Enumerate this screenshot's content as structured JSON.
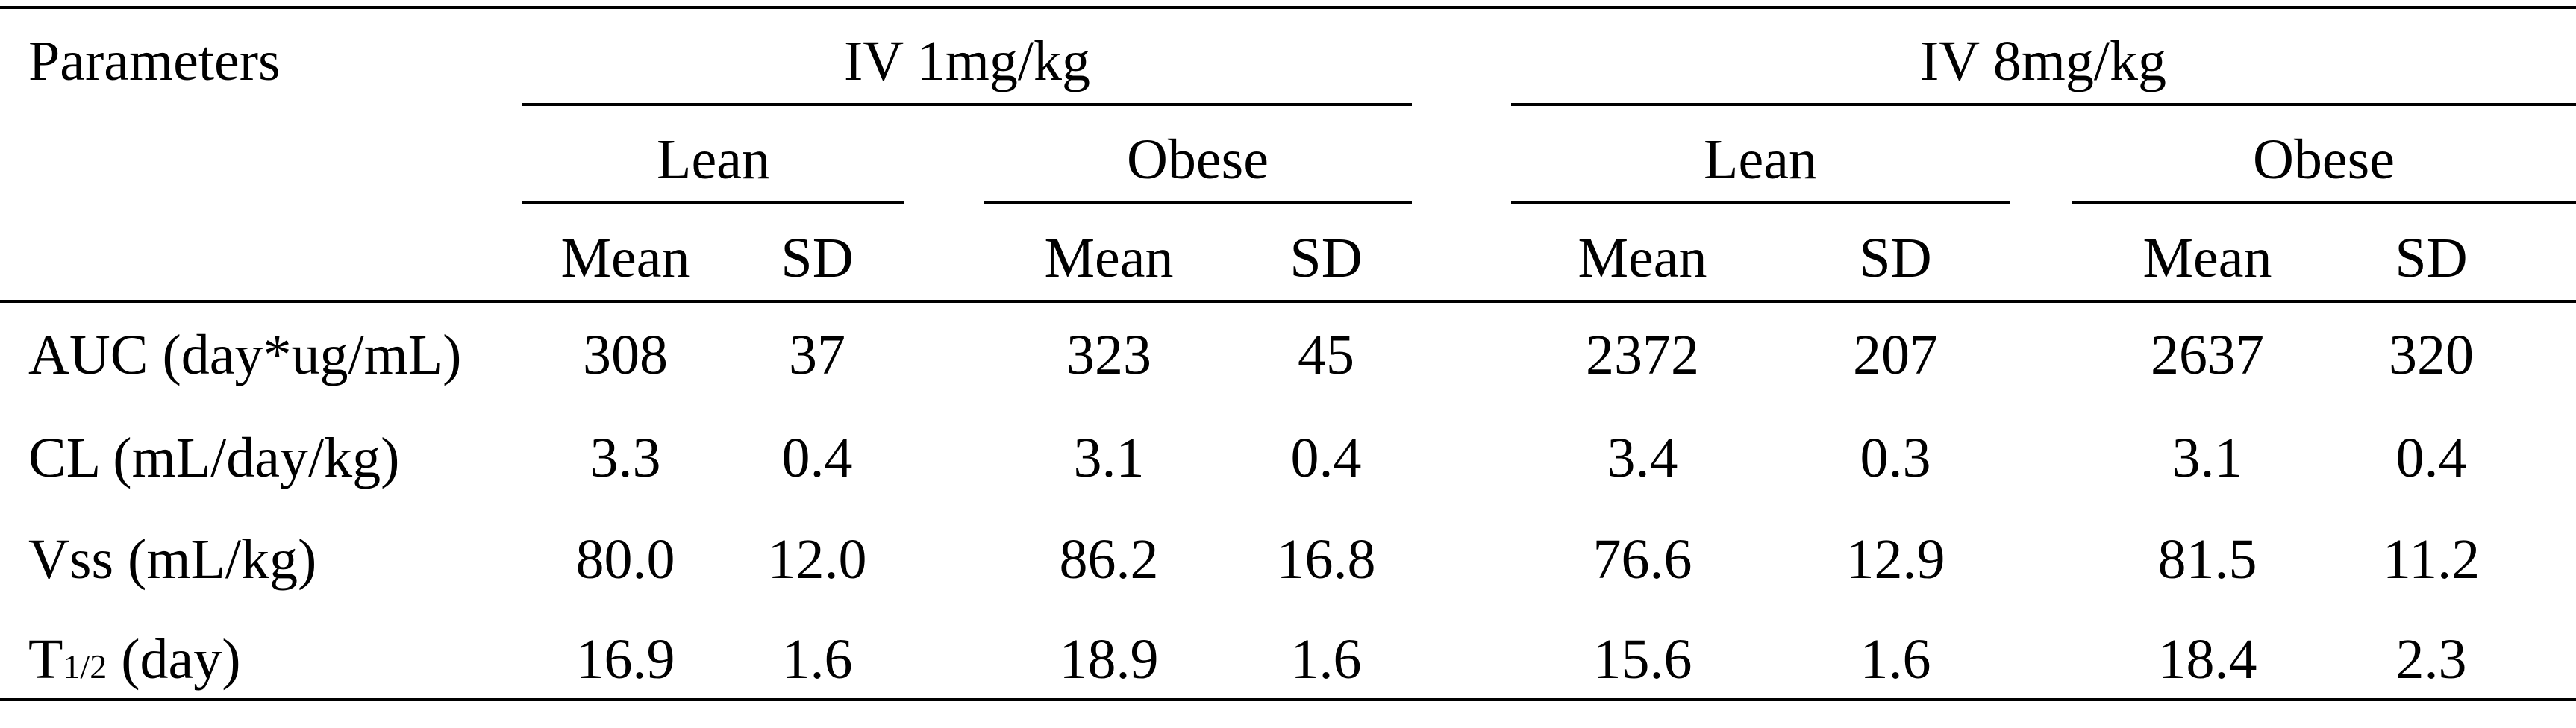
{
  "table": {
    "header": {
      "param_label": "Parameters",
      "groups": [
        "IV 1mg/kg",
        "IV 8mg/kg"
      ],
      "subgroups": [
        "Lean",
        "Obese",
        "Lean",
        "Obese"
      ],
      "stats": [
        "Mean",
        "SD",
        "Mean",
        "SD",
        "Mean",
        "SD",
        "Mean",
        "SD"
      ]
    },
    "rows": [
      {
        "label": "AUC (day*ug/mL)",
        "values": [
          "308",
          "37",
          "323",
          "45",
          "2372",
          "207",
          "2637",
          "320"
        ]
      },
      {
        "label": "CL (mL/day/kg)",
        "values": [
          "3.3",
          "0.4",
          "3.1",
          "0.4",
          "3.4",
          "0.3",
          "3.1",
          "0.4"
        ]
      },
      {
        "label": "Vss (mL/kg)",
        "values": [
          "80.0",
          "12.0",
          "86.2",
          "16.8",
          "76.6",
          "12.9",
          "81.5",
          "11.2"
        ]
      },
      {
        "label_main": "T",
        "label_sub": "1/2",
        "label_rest": " (day)",
        "values": [
          "16.9",
          "1.6",
          "18.9",
          "1.6",
          "15.6",
          "1.6",
          "18.4",
          "2.3"
        ]
      }
    ]
  }
}
